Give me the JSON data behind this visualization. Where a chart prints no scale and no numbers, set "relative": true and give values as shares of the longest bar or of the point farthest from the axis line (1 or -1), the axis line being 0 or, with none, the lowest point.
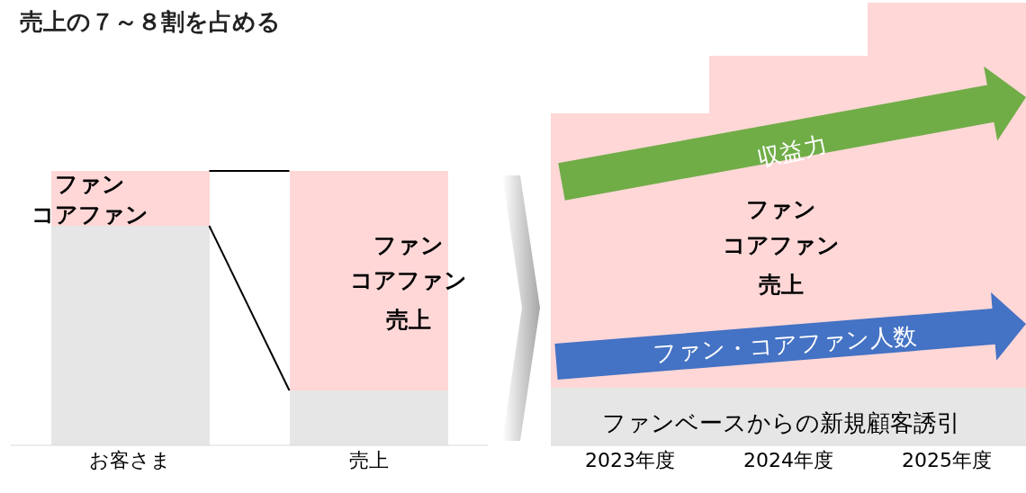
{
  "chart_data": [
    {
      "type": "bar",
      "title": "売上の７～８割を占める",
      "categories": [
        "お客さま",
        "売上"
      ],
      "stacked": true,
      "relative": true,
      "series": [
        {
          "color": "#e6e6e6",
          "values": [
            0.8,
            0.2
          ]
        },
        {
          "color": "#ffd7d7",
          "values": [
            0.2,
            0.8
          ]
        }
      ],
      "annotations": [
        "ファン",
        "コアファン",
        "ファン",
        "コアファン",
        "売上"
      ]
    },
    {
      "type": "bar",
      "categories": [
        "2023年度",
        "2024年度",
        "2025年度"
      ],
      "stacked": true,
      "relative": true,
      "series": [
        {
          "color": "#e6e6e6",
          "values": [
            0.13,
            0.13,
            0.13
          ]
        },
        {
          "color": "#ffd7d7",
          "values": [
            0.62,
            0.75,
            0.87
          ]
        }
      ],
      "annotations": [
        "収益力",
        "ファン",
        "コアファン",
        "売上",
        "ファン・コアファン人数",
        "ファンベースからの新規顧客誘引"
      ]
    }
  ]
}
